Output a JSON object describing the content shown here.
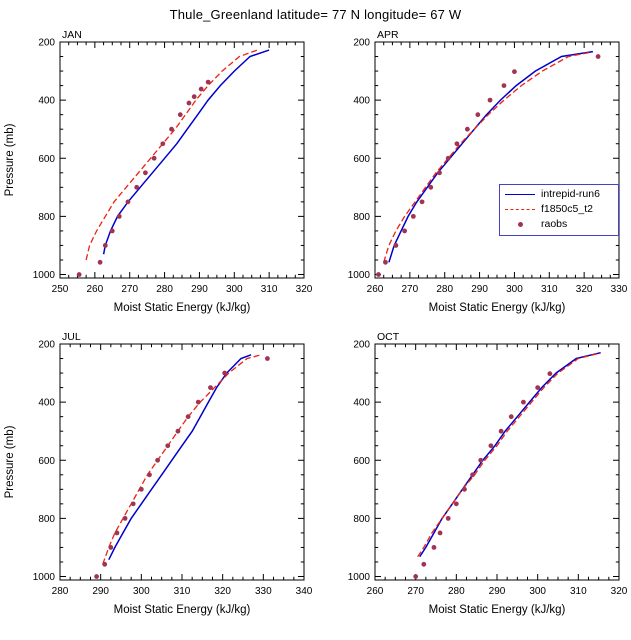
{
  "page_title": "Thule_Greenland  latitude= 77 N longitude= 67 W",
  "axes": {
    "xlabel": "Moist Static Energy (kJ/kg)",
    "ylabel": "Pressure (mb)"
  },
  "legend": {
    "items": [
      {
        "label": "intrepid-run6",
        "color": "#0000cc",
        "style": "solid-line"
      },
      {
        "label": "f1850c5_t2",
        "color": "#ee2211",
        "style": "dashed-line"
      },
      {
        "label": "raobs",
        "color": "#a03552",
        "style": "dot"
      }
    ],
    "border_color": "#4343c8"
  },
  "chart_data": [
    {
      "type": "line",
      "title": "JAN",
      "xlabel": "Moist Static Energy (kJ/kg)",
      "ylabel": "Pressure (mb)",
      "show_ylabel": true,
      "xlim": [
        250,
        320
      ],
      "xticks": [
        250,
        260,
        270,
        280,
        290,
        300,
        310,
        320
      ],
      "ylim": [
        200,
        1000
      ],
      "yticks": [
        200,
        400,
        600,
        800,
        1000
      ],
      "y_inverted": true,
      "series": [
        {
          "name": "intrepid-run6",
          "color": "#0000cc",
          "style": "solid",
          "points": [
            [
              262.5,
              930
            ],
            [
              263,
              900
            ],
            [
              264.5,
              850
            ],
            [
              266.5,
              800
            ],
            [
              269.5,
              750
            ],
            [
              273,
              700
            ],
            [
              276.5,
              650
            ],
            [
              280,
              600
            ],
            [
              283.5,
              550
            ],
            [
              286.5,
              500
            ],
            [
              289.5,
              450
            ],
            [
              292.5,
              400
            ],
            [
              296,
              350
            ],
            [
              300,
              300
            ],
            [
              304.5,
              250
            ],
            [
              310,
              228
            ]
          ]
        },
        {
          "name": "f1850c5_t2",
          "color": "#ee2211",
          "style": "dashed",
          "points": [
            [
              257.5,
              950
            ],
            [
              258.5,
              900
            ],
            [
              260.5,
              850
            ],
            [
              263,
              800
            ],
            [
              265.5,
              750
            ],
            [
              269,
              700
            ],
            [
              272.5,
              650
            ],
            [
              276,
              600
            ],
            [
              279.5,
              550
            ],
            [
              283,
              500
            ],
            [
              286,
              450
            ],
            [
              289,
              400
            ],
            [
              292.5,
              350
            ],
            [
              296.5,
              300
            ],
            [
              301.5,
              250
            ],
            [
              307,
              226
            ]
          ]
        },
        {
          "name": "raobs",
          "color": "#a03552",
          "style": "dots",
          "points": [
            [
              255.5,
              1000
            ],
            [
              261.5,
              958
            ],
            [
              263,
              900
            ],
            [
              265,
              850
            ],
            [
              267,
              800
            ],
            [
              269.5,
              750
            ],
            [
              272,
              700
            ],
            [
              274.5,
              650
            ],
            [
              277,
              600
            ],
            [
              279.5,
              550
            ],
            [
              282,
              500
            ],
            [
              284.5,
              450
            ],
            [
              287,
              410
            ],
            [
              288.5,
              388
            ],
            [
              290.5,
              362
            ],
            [
              292.5,
              338
            ]
          ]
        }
      ]
    },
    {
      "type": "line",
      "title": "APR",
      "xlabel": "Moist Static Energy (kJ/kg)",
      "ylabel": "Pressure (mb)",
      "show_ylabel": false,
      "xlim": [
        260,
        330
      ],
      "xticks": [
        260,
        270,
        280,
        290,
        300,
        310,
        320,
        330
      ],
      "ylim": [
        200,
        1000
      ],
      "yticks": [
        200,
        400,
        600,
        800,
        1000
      ],
      "y_inverted": true,
      "series": [
        {
          "name": "intrepid-run6",
          "color": "#0000cc",
          "style": "solid",
          "points": [
            [
              264,
              958
            ],
            [
              265.5,
              900
            ],
            [
              267.5,
              850
            ],
            [
              269.5,
              800
            ],
            [
              272,
              750
            ],
            [
              275,
              700
            ],
            [
              278,
              650
            ],
            [
              281.5,
              600
            ],
            [
              285,
              550
            ],
            [
              288.5,
              500
            ],
            [
              292,
              450
            ],
            [
              296,
              400
            ],
            [
              300.5,
              350
            ],
            [
              306,
              300
            ],
            [
              313.5,
              250
            ],
            [
              322.5,
              233
            ]
          ]
        },
        {
          "name": "f1850c5_t2",
          "color": "#ee2211",
          "style": "dashed",
          "points": [
            [
              262.5,
              958
            ],
            [
              264,
              900
            ],
            [
              266,
              850
            ],
            [
              268.5,
              800
            ],
            [
              271.5,
              750
            ],
            [
              274.5,
              700
            ],
            [
              277.5,
              650
            ],
            [
              281,
              600
            ],
            [
              284.5,
              550
            ],
            [
              288.5,
              500
            ],
            [
              292.5,
              450
            ],
            [
              297,
              400
            ],
            [
              302,
              350
            ],
            [
              308,
              300
            ],
            [
              315.5,
              250
            ],
            [
              321.5,
              236
            ]
          ]
        },
        {
          "name": "raobs",
          "color": "#a03552",
          "style": "dots",
          "points": [
            [
              261,
              1000
            ],
            [
              263,
              958
            ],
            [
              266,
              900
            ],
            [
              268.5,
              850
            ],
            [
              271,
              800
            ],
            [
              273.5,
              750
            ],
            [
              276,
              700
            ],
            [
              278.5,
              650
            ],
            [
              281,
              600
            ],
            [
              283.5,
              550
            ],
            [
              286.5,
              500
            ],
            [
              289.5,
              450
            ],
            [
              293,
              400
            ],
            [
              297,
              350
            ],
            [
              300,
              302
            ],
            [
              324,
              250
            ]
          ]
        }
      ]
    },
    {
      "type": "line",
      "title": "JUL",
      "xlabel": "Moist Static Energy (kJ/kg)",
      "ylabel": "Pressure (mb)",
      "show_ylabel": true,
      "xlim": [
        280,
        340
      ],
      "xticks": [
        280,
        290,
        300,
        310,
        320,
        330,
        340
      ],
      "ylim": [
        200,
        1000
      ],
      "yticks": [
        200,
        400,
        600,
        800,
        1000
      ],
      "y_inverted": true,
      "series": [
        {
          "name": "intrepid-run6",
          "color": "#0000cc",
          "style": "solid",
          "points": [
            [
              292,
              942
            ],
            [
              293.5,
              900
            ],
            [
              295.5,
              850
            ],
            [
              297.5,
              800
            ],
            [
              300,
              750
            ],
            [
              302.5,
              700
            ],
            [
              305,
              650
            ],
            [
              307.5,
              600
            ],
            [
              310,
              550
            ],
            [
              312.5,
              500
            ],
            [
              314.5,
              450
            ],
            [
              316.5,
              400
            ],
            [
              318.5,
              350
            ],
            [
              321,
              300
            ],
            [
              324.5,
              250
            ],
            [
              327,
              237
            ]
          ]
        },
        {
          "name": "f1850c5_t2",
          "color": "#ee2211",
          "style": "dashed",
          "points": [
            [
              290.5,
              958
            ],
            [
              292,
              900
            ],
            [
              293.5,
              850
            ],
            [
              295.5,
              800
            ],
            [
              297.5,
              750
            ],
            [
              299.5,
              700
            ],
            [
              301.5,
              650
            ],
            [
              304,
              600
            ],
            [
              306.5,
              550
            ],
            [
              309,
              500
            ],
            [
              311.5,
              450
            ],
            [
              314.5,
              400
            ],
            [
              318,
              350
            ],
            [
              321.5,
              300
            ],
            [
              326,
              250
            ],
            [
              329.5,
              237
            ]
          ]
        },
        {
          "name": "raobs",
          "color": "#a03552",
          "style": "dots",
          "points": [
            [
              289,
              1000
            ],
            [
              291,
              958
            ],
            [
              292.5,
              900
            ],
            [
              294,
              850
            ],
            [
              296,
              800
            ],
            [
              298,
              750
            ],
            [
              300,
              700
            ],
            [
              302,
              650
            ],
            [
              304,
              600
            ],
            [
              306.5,
              550
            ],
            [
              309,
              500
            ],
            [
              311.5,
              450
            ],
            [
              314,
              400
            ],
            [
              317,
              350
            ],
            [
              320.5,
              300
            ],
            [
              331,
              250
            ]
          ]
        }
      ]
    },
    {
      "type": "line",
      "title": "OCT",
      "xlabel": "Moist Static Energy (kJ/kg)",
      "ylabel": "Pressure (mb)",
      "show_ylabel": false,
      "xlim": [
        260,
        320
      ],
      "xticks": [
        260,
        270,
        280,
        290,
        300,
        310,
        320
      ],
      "ylim": [
        200,
        1000
      ],
      "yticks": [
        200,
        400,
        600,
        800,
        1000
      ],
      "y_inverted": true,
      "series": [
        {
          "name": "intrepid-run6",
          "color": "#0000cc",
          "style": "solid",
          "points": [
            [
              271,
              932
            ],
            [
              272.5,
              900
            ],
            [
              274.5,
              850
            ],
            [
              276.5,
              800
            ],
            [
              279,
              750
            ],
            [
              281.5,
              700
            ],
            [
              284,
              650
            ],
            [
              286.5,
              600
            ],
            [
              289.5,
              550
            ],
            [
              292,
              500
            ],
            [
              295,
              450
            ],
            [
              298,
              400
            ],
            [
              301,
              350
            ],
            [
              304.5,
              300
            ],
            [
              309.5,
              250
            ],
            [
              315.5,
              230
            ]
          ]
        },
        {
          "name": "f1850c5_t2",
          "color": "#ee2211",
          "style": "dashed",
          "points": [
            [
              270.5,
              932
            ],
            [
              272,
              900
            ],
            [
              274,
              850
            ],
            [
              276.5,
              800
            ],
            [
              279,
              750
            ],
            [
              281.5,
              700
            ],
            [
              284.5,
              650
            ],
            [
              287,
              600
            ],
            [
              290,
              550
            ],
            [
              292.5,
              500
            ],
            [
              295.5,
              450
            ],
            [
              298.5,
              400
            ],
            [
              301.5,
              350
            ],
            [
              305,
              300
            ],
            [
              310,
              250
            ],
            [
              315.5,
              231
            ]
          ]
        },
        {
          "name": "raobs",
          "color": "#a03552",
          "style": "dots",
          "points": [
            [
              270,
              1000
            ],
            [
              272,
              958
            ],
            [
              274.5,
              900
            ],
            [
              276,
              850
            ],
            [
              278,
              800
            ],
            [
              280,
              750
            ],
            [
              282,
              700
            ],
            [
              284,
              650
            ],
            [
              286,
              600
            ],
            [
              288.5,
              550
            ],
            [
              291,
              500
            ],
            [
              293.5,
              450
            ],
            [
              296.5,
              400
            ],
            [
              300,
              350
            ],
            [
              303,
              302
            ]
          ]
        }
      ]
    }
  ]
}
